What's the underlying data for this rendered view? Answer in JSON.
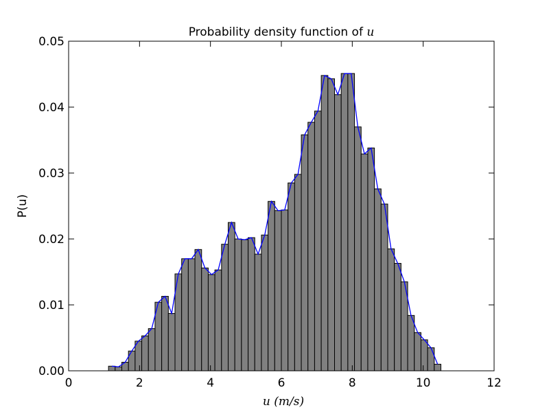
{
  "chart_data": {
    "type": "bar",
    "title": {
      "text": "Probability density function of ",
      "math": "u"
    },
    "xlabel": {
      "math": "u",
      "unit": "(m/s)"
    },
    "ylabel": "P(u)",
    "xlim": [
      0,
      12
    ],
    "ylim": [
      0,
      0.05
    ],
    "xticks": [
      0,
      2,
      4,
      6,
      8,
      10,
      12
    ],
    "xtick_labels": [
      "0",
      "2",
      "4",
      "6",
      "8",
      "10",
      "12"
    ],
    "yticks": [
      0,
      0.01,
      0.02,
      0.03,
      0.04,
      0.05
    ],
    "ytick_labels": [
      "0.00",
      "0.01",
      "0.02",
      "0.03",
      "0.04",
      "0.05"
    ],
    "grid": false,
    "bin_width": 0.1875,
    "bar_color": "#808080",
    "bar_edge_color": "#000000",
    "line_color": "#0000ff",
    "bin_starts": [
      1.125,
      1.3125,
      1.5,
      1.6875,
      1.875,
      2.0625,
      2.25,
      2.4375,
      2.625,
      2.8125,
      3.0,
      3.1875,
      3.375,
      3.5625,
      3.75,
      3.9375,
      4.125,
      4.3125,
      4.5,
      4.6875,
      4.875,
      5.0625,
      5.25,
      5.4375,
      5.625,
      5.8125,
      6.0,
      6.1875,
      6.375,
      6.5625,
      6.75,
      6.9375,
      7.125,
      7.3125,
      7.5,
      7.6875,
      7.875,
      8.0625,
      8.25,
      8.4375,
      8.625,
      8.8125,
      9.0,
      9.1875,
      9.375,
      9.5625,
      9.75,
      9.9375,
      10.125,
      10.3125
    ],
    "values": [
      0.0007,
      0.0006,
      0.0013,
      0.003,
      0.0045,
      0.0053,
      0.0064,
      0.0104,
      0.0113,
      0.0087,
      0.0147,
      0.017,
      0.017,
      0.0184,
      0.0156,
      0.0146,
      0.0153,
      0.0192,
      0.0225,
      0.02,
      0.0199,
      0.0202,
      0.0177,
      0.0206,
      0.0257,
      0.0243,
      0.0244,
      0.0285,
      0.0298,
      0.0358,
      0.0377,
      0.0394,
      0.0448,
      0.0443,
      0.0419,
      0.0451,
      0.0451,
      0.037,
      0.0329,
      0.0338,
      0.0276,
      0.0253,
      0.0185,
      0.0163,
      0.0135,
      0.0084,
      0.0058,
      0.0047,
      0.0035,
      0.001
    ]
  }
}
